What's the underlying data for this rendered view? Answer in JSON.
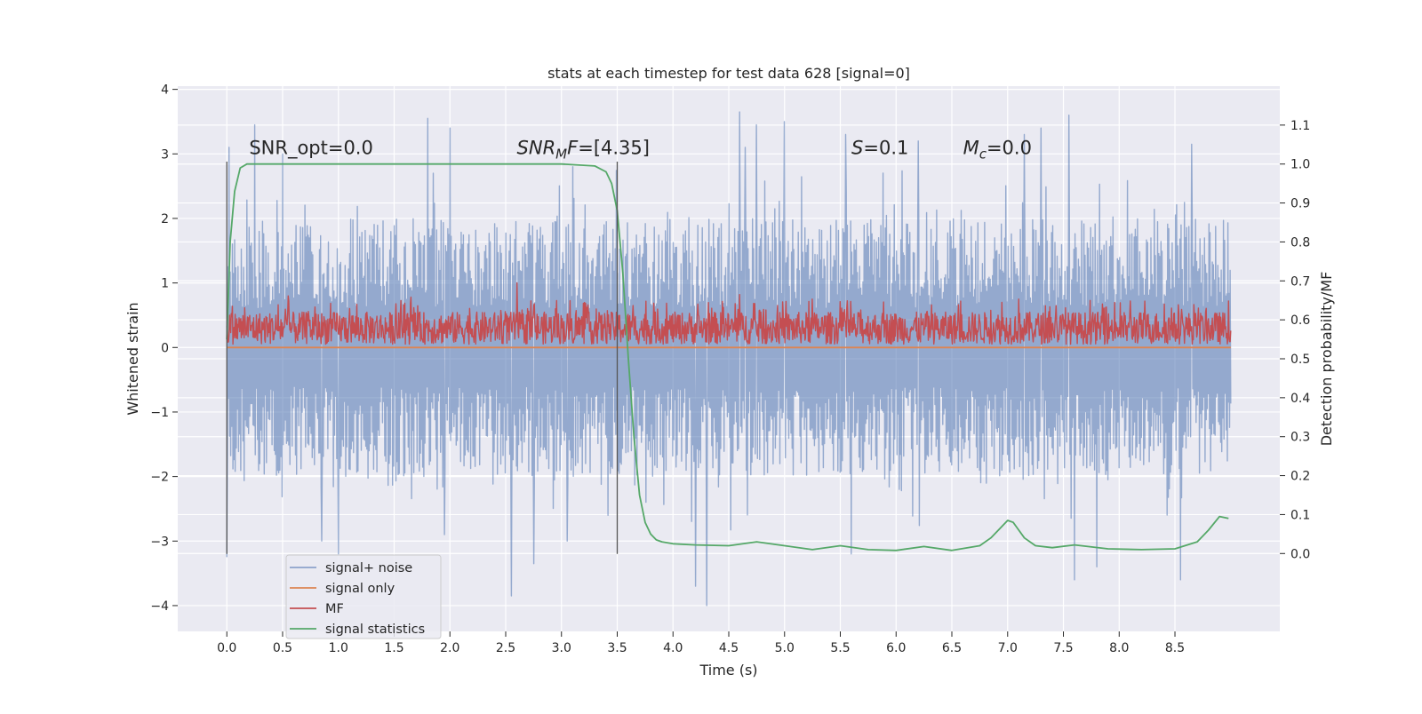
{
  "chart_data": {
    "type": "line",
    "title": "stats at each timestep for test data 628 [signal=0]",
    "xlabel": "Time (s)",
    "ylabel": "Whitened strain",
    "y2label": "Detection probability/MF",
    "xlim": [
      -0.44,
      9.44
    ],
    "ylim": [
      -4.4,
      4.05
    ],
    "y2lim": [
      -0.2,
      1.2
    ],
    "x_ticks": [
      0.0,
      0.5,
      1.0,
      1.5,
      2.0,
      2.5,
      3.0,
      3.5,
      4.0,
      4.5,
      5.0,
      5.5,
      6.0,
      6.5,
      7.0,
      7.5,
      8.0,
      8.5
    ],
    "x_tick_labels": [
      "0.0",
      "0.5",
      "1.0",
      "1.5",
      "2.0",
      "2.5",
      "3.0",
      "3.5",
      "4.0",
      "4.5",
      "5.0",
      "5.5",
      "6.0",
      "6.5",
      "7.0",
      "7.5",
      "8.0",
      "8.5"
    ],
    "y_ticks": [
      4,
      3,
      2,
      1,
      0,
      -1,
      -2,
      -3,
      -4
    ],
    "y_tick_labels": [
      "4",
      "3",
      "2",
      "1",
      "0",
      "−1",
      "−2",
      "−3",
      "−4"
    ],
    "y2_ticks": [
      1.1,
      1.0,
      0.9,
      0.8,
      0.7,
      0.6,
      0.5,
      0.4,
      0.3,
      0.2,
      0.1,
      0.0
    ],
    "y2_tick_labels": [
      "1.1",
      "1.0",
      "0.9",
      "0.8",
      "0.7",
      "0.6",
      "0.5",
      "0.4",
      "0.3",
      "0.2",
      "0.1",
      "0.0"
    ],
    "grid": true,
    "legend_position": "lower-left",
    "annotations": [
      {
        "segments": [
          {
            "text": "SNR_opt=0.0",
            "italic": false
          }
        ],
        "x": 0.2,
        "y": 3.0
      },
      {
        "segments": [
          {
            "text": "SNR",
            "italic": true
          },
          {
            "text": "M",
            "italic": true,
            "sub": true
          },
          {
            "text": "F",
            "italic": true
          },
          {
            "text": "=[4.35]",
            "italic": false
          }
        ],
        "x": 2.6,
        "y": 3.0
      },
      {
        "segments": [
          {
            "text": "S",
            "italic": true
          },
          {
            "text": "=0.1",
            "italic": false
          }
        ],
        "x": 5.6,
        "y": 3.0
      },
      {
        "segments": [
          {
            "text": "M",
            "italic": true
          },
          {
            "text": "c",
            "italic": true,
            "sub": true
          },
          {
            "text": "=0.0",
            "italic": false
          }
        ],
        "x": 6.6,
        "y": 3.0
      }
    ],
    "vlines": [
      {
        "x": 0.0,
        "y": [
          -3.2,
          2.88
        ]
      },
      {
        "x": 3.5,
        "y": [
          -3.2,
          2.88
        ]
      }
    ],
    "series": [
      {
        "name": "signal+ noise",
        "color": "#4C72B0",
        "axis": "left",
        "kind": "noise-trace",
        "x_range": [
          0.0,
          9.0
        ],
        "envelope_upper_typical": 2.0,
        "envelope_lower_typical": -2.0,
        "peaks": [
          [
            0.0,
            -3.25
          ],
          [
            0.02,
            3.1
          ],
          [
            0.25,
            3.45
          ],
          [
            0.5,
            3.0
          ],
          [
            0.85,
            -3.0
          ],
          [
            1.0,
            -3.2
          ],
          [
            1.8,
            3.55
          ],
          [
            1.95,
            -2.9
          ],
          [
            2.0,
            3.4
          ],
          [
            2.55,
            -3.85
          ],
          [
            2.75,
            -3.35
          ],
          [
            3.05,
            -3.0
          ],
          [
            3.1,
            2.8
          ],
          [
            4.2,
            -3.7
          ],
          [
            4.3,
            -4.0
          ],
          [
            4.6,
            3.65
          ],
          [
            4.65,
            3.1
          ],
          [
            4.75,
            3.45
          ],
          [
            5.0,
            3.5
          ],
          [
            5.55,
            3.3
          ],
          [
            5.6,
            -3.2
          ],
          [
            6.2,
            3.2
          ],
          [
            7.15,
            3.3
          ],
          [
            7.3,
            3.4
          ],
          [
            7.55,
            3.6
          ],
          [
            7.6,
            -3.6
          ],
          [
            7.8,
            -3.4
          ],
          [
            8.55,
            -3.6
          ],
          [
            8.65,
            3.15
          ]
        ]
      },
      {
        "name": "signal only",
        "color": "#DD8452",
        "axis": "left",
        "kind": "line",
        "x": [
          0.0,
          9.0
        ],
        "y": [
          0.0,
          0.0
        ]
      },
      {
        "name": "MF",
        "color": "#C44E52",
        "axis": "left",
        "kind": "noise-trace",
        "x_range": [
          0.0,
          9.0
        ],
        "band": [
          0.05,
          0.55
        ],
        "peaks": [
          [
            0.55,
            0.8
          ],
          [
            1.65,
            0.78
          ],
          [
            2.6,
            1.0
          ],
          [
            2.75,
            0.65
          ],
          [
            4.6,
            0.82
          ],
          [
            5.25,
            0.75
          ],
          [
            6.95,
            0.7
          ],
          [
            7.1,
            0.75
          ],
          [
            8.1,
            0.72
          ]
        ]
      },
      {
        "name": "signal statistics",
        "color": "#55A868",
        "axis": "right",
        "kind": "line",
        "x": [
          0.0,
          0.03,
          0.07,
          0.12,
          0.18,
          0.3,
          0.5,
          1.0,
          2.0,
          3.0,
          3.3,
          3.4,
          3.45,
          3.5,
          3.55,
          3.6,
          3.65,
          3.7,
          3.75,
          3.8,
          3.85,
          3.9,
          4.0,
          4.2,
          4.5,
          4.75,
          5.0,
          5.25,
          5.5,
          5.75,
          6.0,
          6.25,
          6.5,
          6.75,
          6.85,
          6.95,
          7.0,
          7.05,
          7.15,
          7.25,
          7.4,
          7.6,
          7.9,
          8.2,
          8.5,
          8.7,
          8.8,
          8.9,
          8.98
        ],
        "y": [
          0.55,
          0.8,
          0.93,
          0.99,
          1.0,
          1.0,
          1.0,
          1.0,
          1.0,
          1.0,
          0.995,
          0.98,
          0.95,
          0.88,
          0.72,
          0.5,
          0.3,
          0.15,
          0.08,
          0.05,
          0.035,
          0.03,
          0.025,
          0.022,
          0.02,
          0.03,
          0.02,
          0.01,
          0.02,
          0.01,
          0.008,
          0.018,
          0.008,
          0.02,
          0.04,
          0.07,
          0.085,
          0.08,
          0.04,
          0.02,
          0.015,
          0.022,
          0.012,
          0.01,
          0.012,
          0.03,
          0.06,
          0.095,
          0.09
        ]
      }
    ]
  }
}
